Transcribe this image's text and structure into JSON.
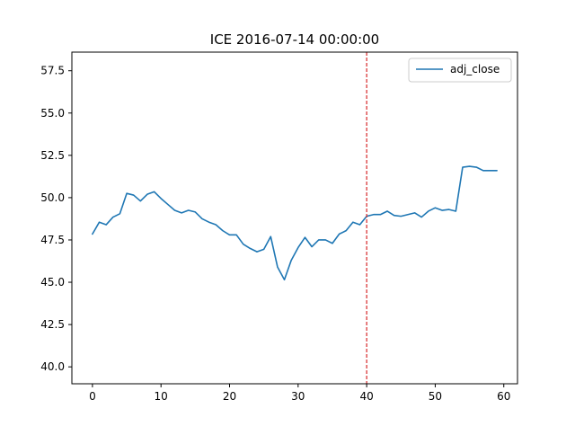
{
  "chart_data": {
    "type": "line",
    "title": "ICE 2016-07-14 00:00:00",
    "xlabel": "",
    "ylabel": "",
    "xlim": [
      -3,
      62
    ],
    "ylim": [
      39,
      58.6
    ],
    "xticks": [
      0,
      10,
      20,
      30,
      40,
      50,
      60
    ],
    "xtick_labels": [
      "0",
      "10",
      "20",
      "30",
      "40",
      "50",
      "60"
    ],
    "yticks": [
      40.0,
      42.5,
      45.0,
      47.5,
      50.0,
      52.5,
      55.0,
      57.5
    ],
    "ytick_labels": [
      "40.0",
      "42.5",
      "45.0",
      "47.5",
      "50.0",
      "52.5",
      "55.0",
      "57.5"
    ],
    "grid": false,
    "legend": {
      "location": "top-right",
      "entries": [
        "adj_close"
      ]
    },
    "series": [
      {
        "name": "adj_close",
        "color": "#1f77b4",
        "x": [
          0,
          1,
          2,
          3,
          4,
          5,
          6,
          7,
          8,
          9,
          10,
          11,
          12,
          13,
          14,
          15,
          16,
          17,
          18,
          19,
          20,
          21,
          22,
          23,
          24,
          25,
          26,
          27,
          28,
          29,
          30,
          31,
          32,
          33,
          34,
          35,
          36,
          37,
          38,
          39,
          40,
          41,
          42,
          43,
          44,
          45,
          46,
          47,
          48,
          49,
          50,
          51,
          52,
          53,
          54,
          55,
          56,
          57,
          58,
          59
        ],
        "values": [
          47.85,
          48.55,
          48.4,
          48.85,
          49.05,
          50.25,
          50.15,
          49.8,
          50.2,
          50.35,
          49.95,
          49.6,
          49.25,
          49.1,
          49.25,
          49.15,
          48.75,
          48.55,
          48.4,
          48.05,
          47.8,
          47.8,
          47.25,
          47.0,
          46.8,
          46.95,
          47.7,
          45.9,
          45.15,
          46.3,
          47.05,
          47.65,
          47.1,
          47.5,
          47.5,
          47.3,
          47.85,
          48.05,
          48.55,
          48.4,
          48.9,
          49.0,
          49.0,
          49.2,
          48.95,
          48.9,
          49.0,
          49.1,
          48.85,
          49.2,
          49.4,
          49.25,
          49.3,
          49.2,
          51.8,
          51.85,
          51.8,
          51.6,
          51.6,
          51.6
        ]
      }
    ],
    "vertical_line": {
      "x": 40,
      "color": "#d62728",
      "style": "dashed"
    }
  }
}
